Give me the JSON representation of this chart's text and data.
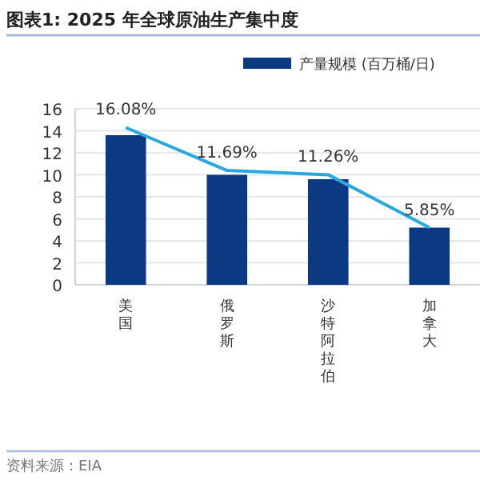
{
  "chart_data": {
    "type": "bar",
    "title": "图表1:  2025 年全球原油生产集中度",
    "categories": [
      "美国",
      "俄罗斯",
      "沙特阿拉伯",
      "加拿大"
    ],
    "series": [
      {
        "name": "产量规模 (百万桶/日)",
        "color": "#0b3a82",
        "values": [
          13.6,
          10.0,
          9.6,
          5.2
        ]
      },
      {
        "type": "line",
        "axis": "y2",
        "color": "#2aa7df",
        "values": [
          16.08,
          11.69,
          11.26,
          5.85
        ],
        "value_labels": [
          "16.08%",
          "11.69%",
          "11.26%",
          "5.85%"
        ]
      }
    ],
    "ylim": [
      0,
      16
    ],
    "yticks": [
      0,
      2,
      4,
      6,
      8,
      10,
      12,
      14,
      16
    ],
    "y2lim": [
      0,
      18
    ],
    "grid": "y",
    "legend": "top right",
    "marker": "none",
    "annotations": [
      "资料来源：EIA"
    ]
  }
}
